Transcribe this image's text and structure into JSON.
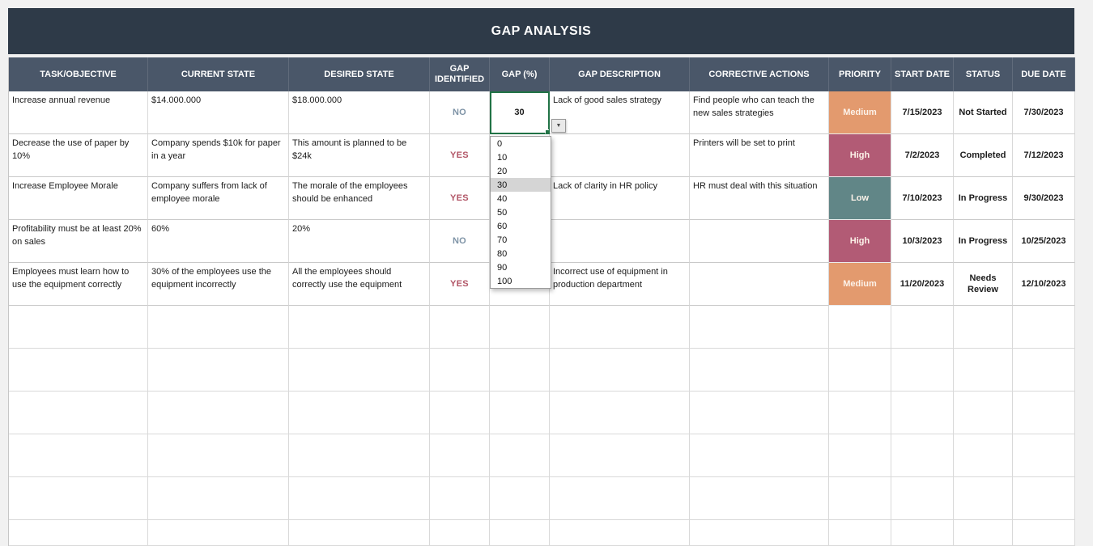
{
  "title": "GAP ANALYSIS",
  "columns": [
    {
      "label": "TASK/OBJECTIVE"
    },
    {
      "label": "CURRENT STATE"
    },
    {
      "label": "DESIRED STATE"
    },
    {
      "label": "GAP IDENTIFIED"
    },
    {
      "label": "GAP (%)"
    },
    {
      "label": "GAP DESCRIPTION"
    },
    {
      "label": "CORRECTIVE ACTIONS"
    },
    {
      "label": "PRIORITY"
    },
    {
      "label": "START DATE"
    },
    {
      "label": "STATUS"
    },
    {
      "label": "DUE DATE"
    }
  ],
  "rows": [
    {
      "task": "Increase annual revenue",
      "current": "$14.000.000",
      "desired": "$18.000.000",
      "gap_identified": "NO",
      "gap_pct": "30",
      "gap_description": "Lack of good sales strategy",
      "corrective_actions": "Find people who can teach the new sales strategies",
      "priority": "Medium",
      "start_date": "7/15/2023",
      "status": "Not Started",
      "due_date": "7/30/2023"
    },
    {
      "task": "Decrease the use of paper by 10%",
      "current": "Company spends $10k for paper in a year",
      "desired": "This amount is planned to be $24k",
      "gap_identified": "YES",
      "gap_pct": "",
      "gap_description": "",
      "corrective_actions": "Printers will be set to print",
      "priority": "High",
      "start_date": "7/2/2023",
      "status": "Completed",
      "due_date": "7/12/2023"
    },
    {
      "task": "Increase Employee Morale",
      "current": "Company suffers from lack of employee morale",
      "desired": "The morale of the employees should be enhanced",
      "gap_identified": "YES",
      "gap_pct": "",
      "gap_description": "Lack of clarity in HR policy",
      "corrective_actions": "HR must deal with this situation",
      "priority": "Low",
      "start_date": "7/10/2023",
      "status": "In Progress",
      "due_date": "9/30/2023"
    },
    {
      "task": "Profitability must be at least 20% on sales",
      "current": "60%",
      "desired": "20%",
      "gap_identified": "NO",
      "gap_pct": "",
      "gap_description": "",
      "corrective_actions": "",
      "priority": "High",
      "start_date": "10/3/2023",
      "status": "In Progress",
      "due_date": "10/25/2023"
    },
    {
      "task": "Employees must learn how to use the equipment correctly",
      "current": "30% of the employees use the equipment incorrectly",
      "desired": "All the employees should correctly use the equipment",
      "gap_identified": "YES",
      "gap_pct": "",
      "gap_description": "Incorrect use of equipment in production department",
      "corrective_actions": "",
      "priority": "Medium",
      "start_date": "11/20/2023",
      "status": "Needs Review",
      "due_date": "12/10/2023"
    }
  ],
  "dropdown": {
    "selected_value": "30",
    "options": [
      "0",
      "10",
      "20",
      "30",
      "40",
      "50",
      "60",
      "70",
      "80",
      "90",
      "100"
    ],
    "arrow_icon": "▼"
  },
  "colors": {
    "title_bar_bg": "#2e3a48",
    "header_bg": "#4a5769",
    "priority_medium": "#e39a6e",
    "priority_high": "#b25b75",
    "priority_low": "#618687",
    "yes_text": "#b25667",
    "no_text": "#7e93a6",
    "selection_border": "#217346",
    "dropdown_highlight": "#d5d5d5"
  }
}
